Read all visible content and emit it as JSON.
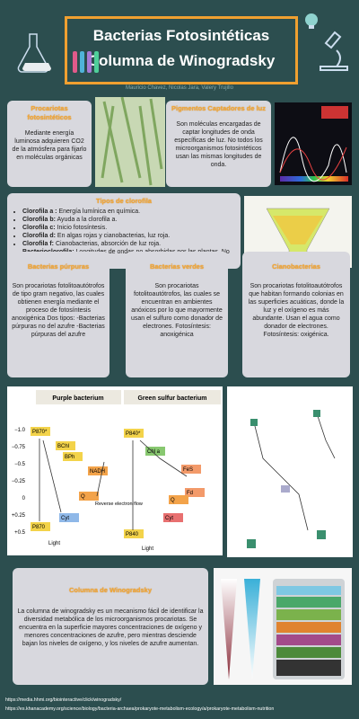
{
  "header": {
    "title_line1": "Bacterias Fotosintéticas",
    "title_line2": "Columna de Winogradsky",
    "authors": "Mauricio Chavez, Nicolas Jara, Valery Trujillo"
  },
  "sections": [
    {
      "heading": "Procariotas fotosintéticos",
      "body": "Mediante energía luminosa adquieren CO2 de la atmósfera para fijarlo en moléculas orgánicas"
    },
    {
      "heading": "Pigmentos Captadores de luz",
      "body": "Son moléculas encargadas de captar longitudes de onda específicas de luz. No todos los microorganismos fotosintéticos usan las mismas longitudes de onda."
    },
    {
      "heading": "Bacterias púrpuras",
      "body": "Son procariotas fotolitoautótrofos de tipo gram negativo, las cuales obtienen energía mediante el proceso de fotosíntesis anoxigénica Dos tipos: -Bacterias púrpuras no del azufre -Bacterias púrpuras del azufre"
    },
    {
      "heading": "Bacterias verdes",
      "body": "Son procariotas fotolitoautótrofos, las cuales se encuentran en ambientes anóxicos por lo que mayormente usan el sulfuro como donador de electrones. Fotosíntesis: anoxigénica"
    },
    {
      "heading": "Cianobacterias",
      "body": "Son procariotas fotolitoautótrofos que habitan formando colonias en las superficies acuáticas, donde la luz y el oxígeno es más abundante. Usan el agua como donador de electrones. Fotosíntesis: oxigénica."
    },
    {
      "heading": "Columna de Winogradsky",
      "body": "La columna de winogradsky es un mecanismo fácil de identificar la diversidad metabólica de los microorganismos procariotas. Se encuentra en la superficie mayores concentraciones de oxígeno y menores concentraciones de azufre, pero mientras desciende bajan los niveles de oxígeno, y los niveles de azufre aumentan."
    }
  ],
  "chlorophyll": {
    "heading": "Tipos de clorofila",
    "items": [
      {
        "term": "Clorofila a :",
        "text": "Energía lumínica en química."
      },
      {
        "term": "Clorofila b:",
        "text": "Ayuda a la clorofila a."
      },
      {
        "term": "Clorofila c:",
        "text": "Inicio fotosíntesis."
      },
      {
        "term": "Clorofila d:",
        "text": "En algas rojas y cianobacterias, luz roja."
      },
      {
        "term": "Clorofila f:",
        "text": "Cianobacterias, absorción de luz roja."
      },
      {
        "term": "Bacterioclorofila:",
        "text": "Longitudes de ondas no absorbidas por las plantas. No produce oxígeno."
      }
    ]
  },
  "figure": {
    "purple_title": "Purple bacterium",
    "green_title": "Green sulfur bacterium",
    "ticks": [
      "−1.0",
      "−0.75",
      "−0.5",
      "−0.25",
      "0",
      "+0.25",
      "+0.5"
    ],
    "purple_labels": [
      "P870*",
      "BChl",
      "BPh",
      "Q",
      "NADH",
      "Cyt",
      "P870",
      "Light"
    ],
    "green_labels": [
      "P840*",
      "Chl a",
      "FeS",
      "Fd",
      "Q",
      "Cyt",
      "P840",
      "Light"
    ],
    "reverse": "Reverse electron flow"
  },
  "references": [
    "https://media.hhmi.org/biointeractive/click/winogradsky/",
    "https://es.khanacademy.org/science/biology/bacteria-archaea/prokaryote-metabolism-ecology/a/prokaryote-metabolism-nutrition"
  ]
}
